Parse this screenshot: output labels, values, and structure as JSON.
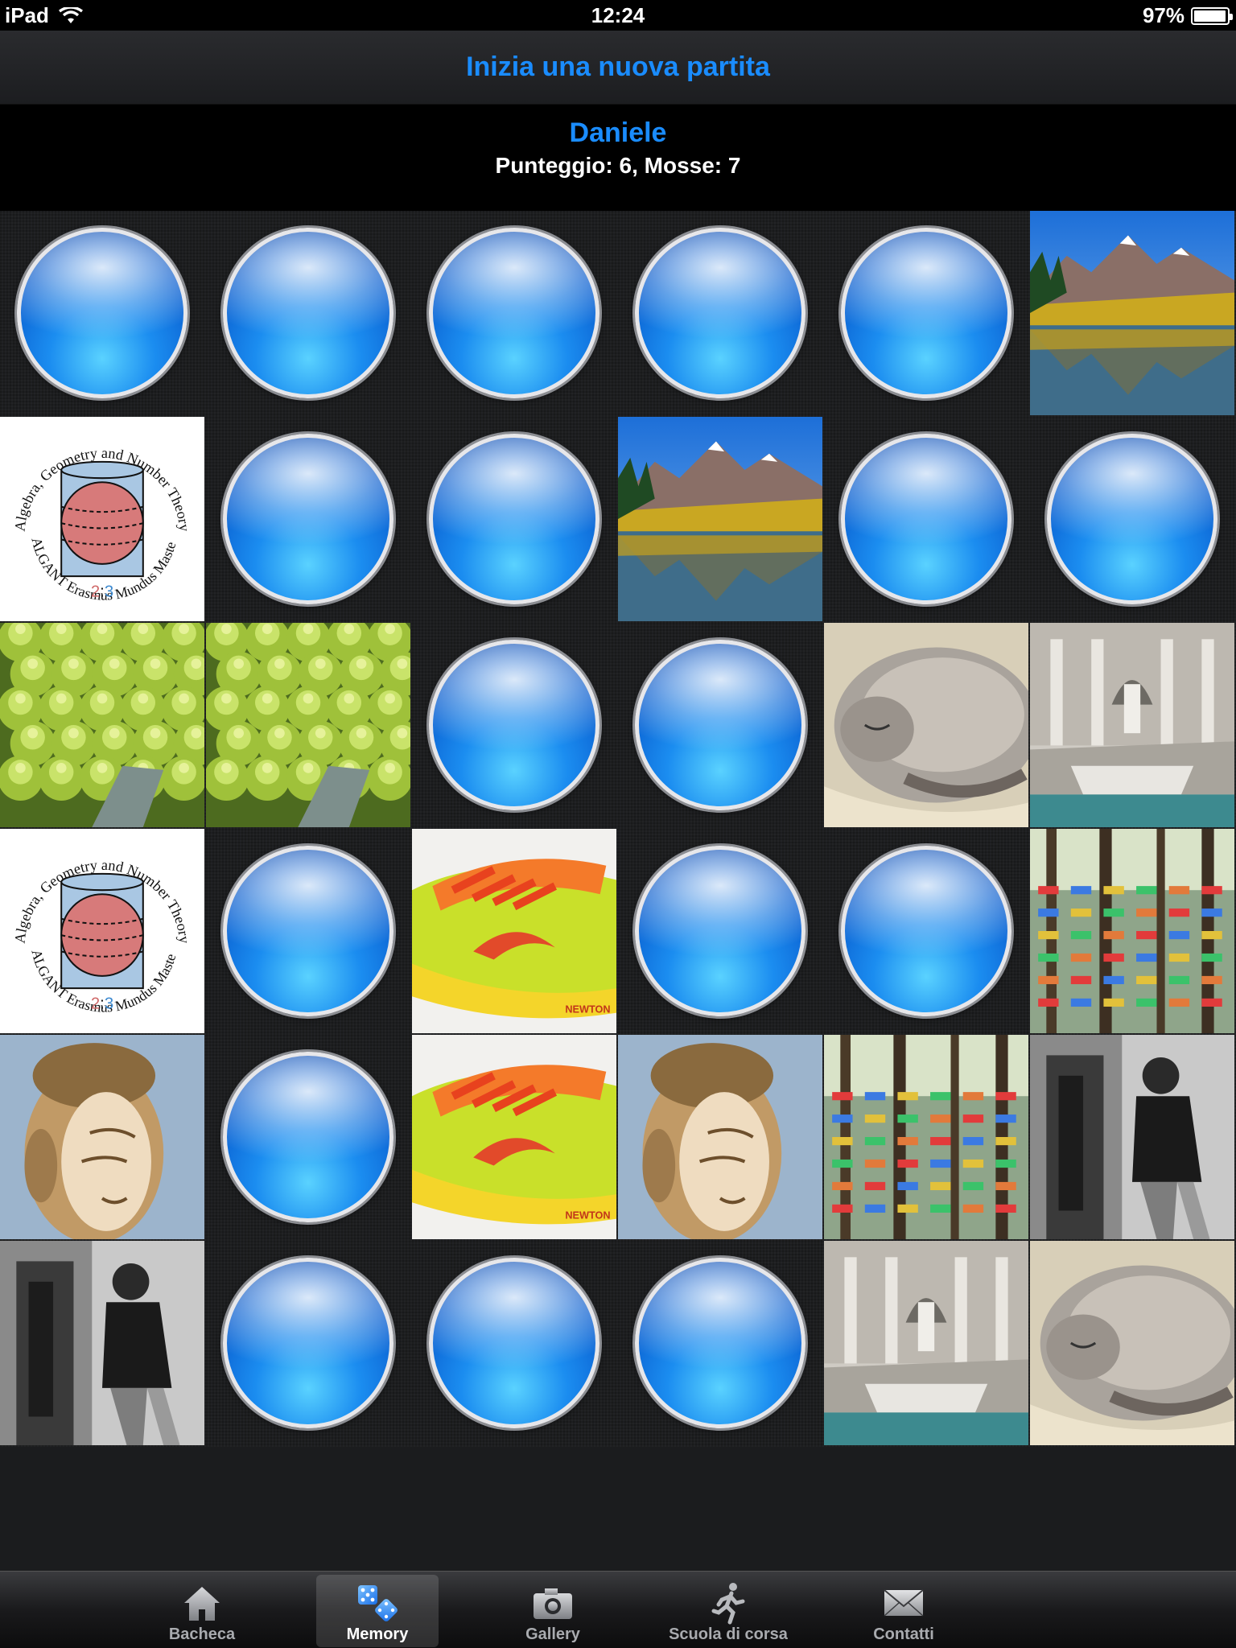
{
  "status_bar": {
    "carrier": "iPad",
    "time": "12:24",
    "battery": "97%",
    "battery_level": 0.97
  },
  "nav": {
    "new_game_label": "Inizia una nuova partita"
  },
  "score": {
    "player": "Daniele",
    "summary": "Punteggio: 6, Mosse: 7"
  },
  "board": {
    "rows": [
      [
        "hidden",
        "hidden",
        "hidden",
        "hidden",
        "hidden",
        "mountain-lake"
      ],
      [
        "algant-logo",
        "hidden",
        "hidden",
        "mountain-lake",
        "hidden",
        "hidden"
      ],
      [
        "romanesco",
        "romanesco",
        "hidden",
        "hidden",
        "sleeping-cat",
        "trevi-fountain"
      ],
      [
        "algant-logo",
        "hidden",
        "running-shoe",
        "hidden",
        "hidden",
        "shoe-forest"
      ],
      [
        "buddha-head",
        "hidden",
        "running-shoe",
        "buddha-head",
        "shoe-forest",
        "bw-portrait"
      ],
      [
        "bw-portrait",
        "hidden",
        "hidden",
        "hidden",
        "trevi-fountain",
        "sleeping-cat"
      ]
    ],
    "algant_logo": {
      "arc_top": "Algebra, Geometry and Number Theory",
      "arc_bottom": "ALGANT Erasmus Mundus Master",
      "ratio_left": "2",
      "ratio_sep": ":",
      "ratio_right": "3"
    },
    "shoe_brand": "NEWTON"
  },
  "tabs": [
    {
      "label": "Bacheca",
      "icon": "house-icon",
      "active": false
    },
    {
      "label": "Memory",
      "icon": "dice-icon",
      "active": true
    },
    {
      "label": "Gallery",
      "icon": "camera-icon",
      "active": false
    },
    {
      "label": "Scuola di corsa",
      "icon": "runner-icon",
      "active": false
    },
    {
      "label": "Contatti",
      "icon": "envelope-icon",
      "active": false
    }
  ],
  "colors": {
    "accent": "#1a8cff",
    "card_blue": "#1b8df0"
  }
}
